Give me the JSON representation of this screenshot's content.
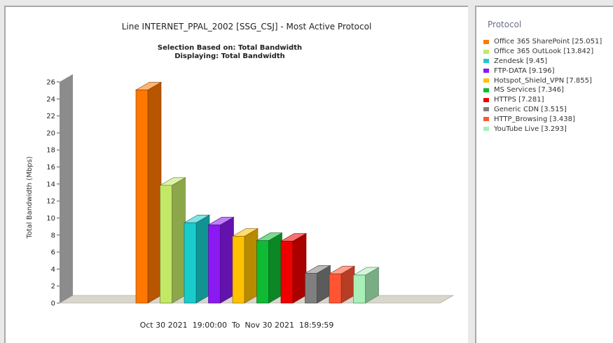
{
  "colors": {
    "panel_border": "#a9a9a9",
    "axis_wall": "#8c8c8c",
    "floor": "#d9d6cc"
  },
  "legend": {
    "title": "Protocol"
  },
  "chart_data": {
    "type": "bar",
    "style": "3d",
    "title": "Line INTERNET_PPAL_2002 [SSG_CSJ] - Most Active Protocol",
    "subtitle_lines": [
      "Selection Based on: Total Bandwidth",
      "Displaying: Total Bandwidth"
    ],
    "xlabel": "Oct 30 2021  19:00:00  To  Nov 30 2021  18:59:59",
    "ylabel": "Total Bandwidth (Mbps)",
    "ylim": [
      0,
      26
    ],
    "yticks": [
      0,
      2,
      4,
      6,
      8,
      10,
      12,
      14,
      16,
      18,
      20,
      22,
      24,
      26
    ],
    "legend_position": "right",
    "categories": [
      "Office 365 SharePoint",
      "Office 365 OutLook",
      "Zendesk",
      "FTP-DATA",
      "Hotspot_Shield_VPN",
      "MS Services",
      "HTTPS",
      "Generic CDN",
      "HTTP_Browsing",
      "YouTube Live"
    ],
    "legend_labels": [
      "Office 365 SharePoint [25.051]",
      "Office 365 OutLook [13.842]",
      "Zendesk [9.45]",
      "FTP-DATA [9.196]",
      "Hotspot_Shield_VPN [7.855]",
      "MS Services [7.346]",
      "HTTPS [7.281]",
      "Generic CDN [3.515]",
      "HTTP_Browsing [3.438]",
      "YouTube Live [3.293]"
    ],
    "values": [
      25.051,
      13.842,
      9.45,
      9.196,
      7.855,
      7.346,
      7.281,
      3.515,
      3.438,
      3.293
    ],
    "colors": [
      "#ff7700",
      "#c2e866",
      "#19cccc",
      "#8a19f2",
      "#ffc000",
      "#0fbb34",
      "#ee0000",
      "#7f7f7f",
      "#ff5533",
      "#a8f0b8"
    ]
  }
}
